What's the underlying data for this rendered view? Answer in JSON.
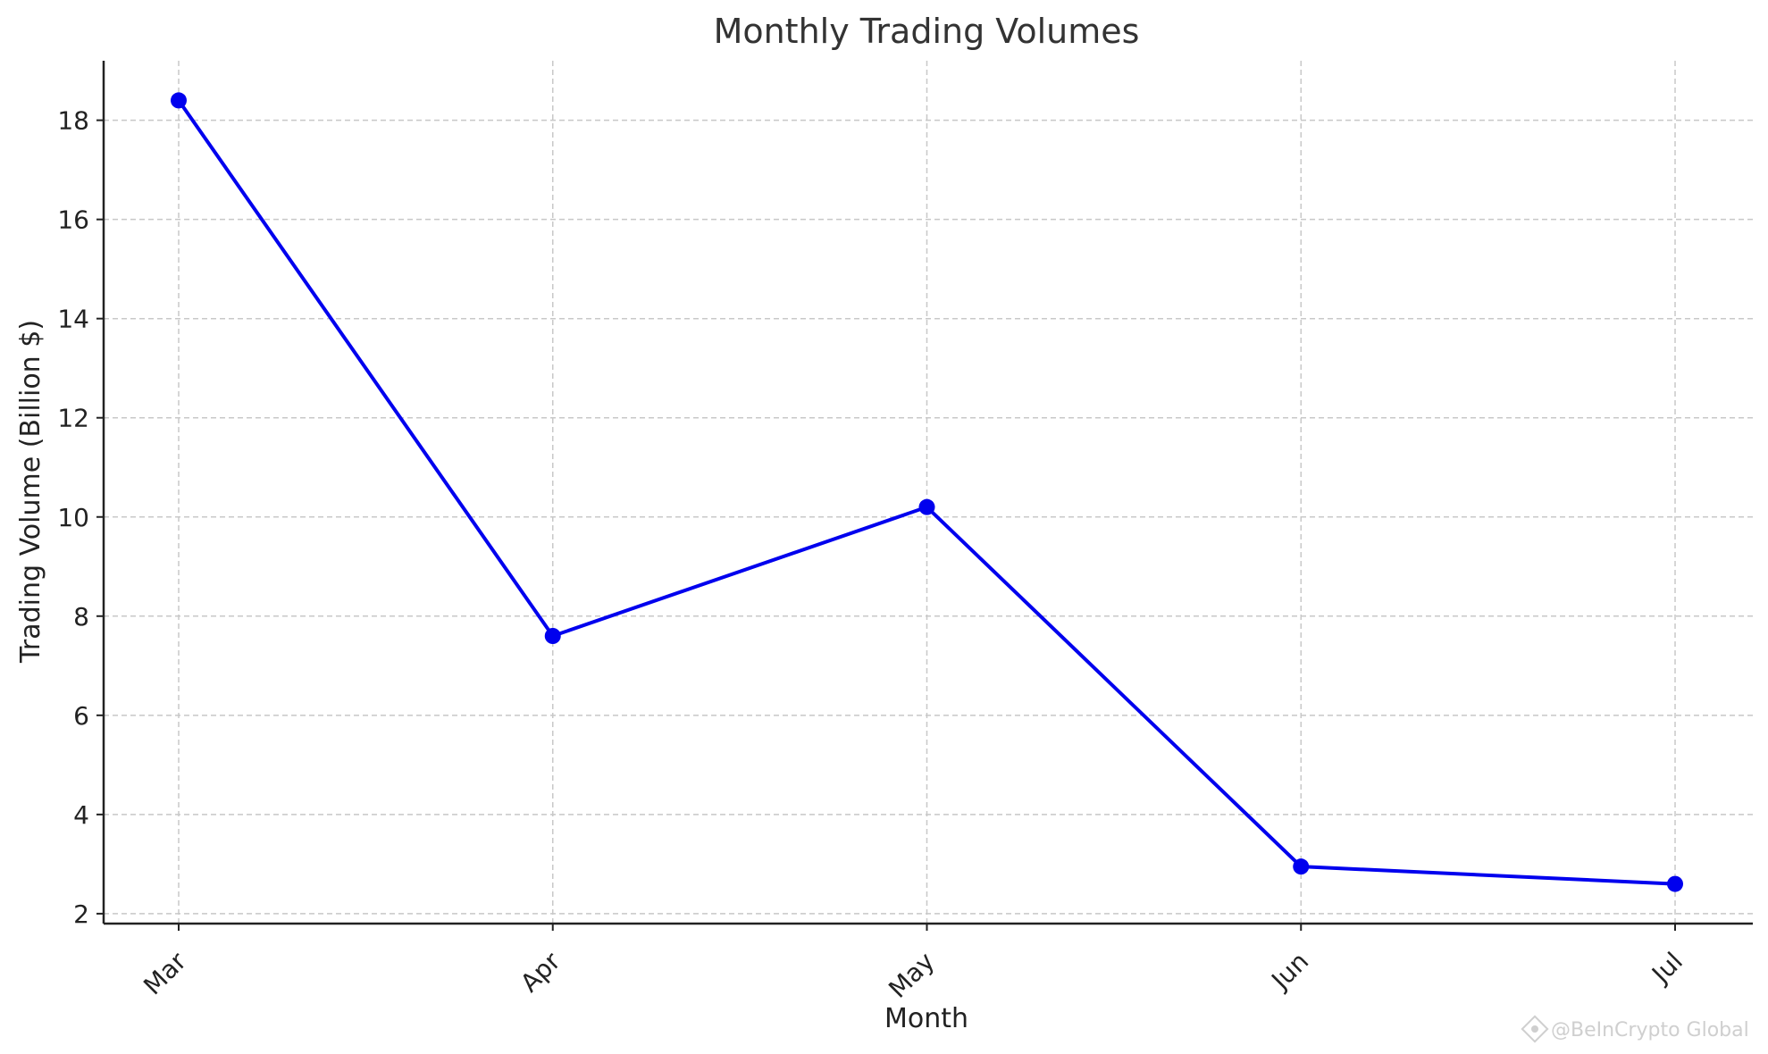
{
  "chart_data": {
    "type": "line",
    "title": "Monthly Trading Volumes",
    "xlabel": "Month",
    "ylabel": "Trading Volume (Billion $)",
    "categories": [
      "Mar",
      "Apr",
      "May",
      "Jun",
      "Jul"
    ],
    "series": [
      {
        "values": [
          18.4,
          7.6,
          10.2,
          2.95,
          2.6
        ],
        "color": "#0000ee"
      }
    ],
    "y_ticks": [
      2,
      4,
      6,
      8,
      10,
      12,
      14,
      16,
      18
    ],
    "ylim": [
      1.8,
      19.2
    ],
    "grid": true,
    "marker": "circle"
  },
  "watermark": {
    "text": "@BeInCrypto Global",
    "icon": "beincrypto-logo-icon"
  }
}
